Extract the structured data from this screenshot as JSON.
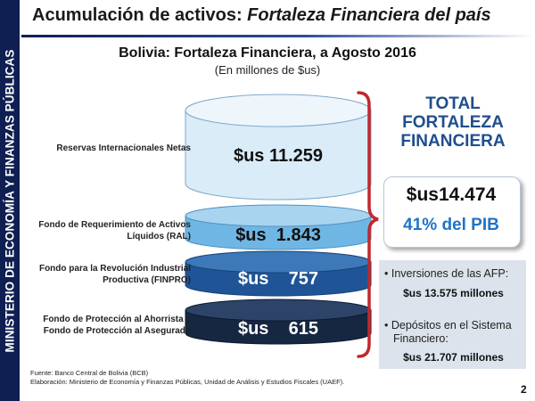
{
  "sidebar": {
    "text": "MINISTERIO DE ECONOMÍA Y FINANZAS PÚBLICAS"
  },
  "header": {
    "title_plain": "Acumulación de activos: ",
    "title_italic": "Fortaleza Financiera del país"
  },
  "chart": {
    "title": "Bolivia: Fortaleza Financiera, a Agosto 2016",
    "subtitle": "(En millones de $us)"
  },
  "chart_data": {
    "type": "bar",
    "categories": [
      "Reservas Internacionales Netas",
      "Fondo de Requerimiento de Activos Líquidos (RAL)",
      "Fondo para la Revolución Industrial Productiva (FINPRO)",
      "Fondo de Protección al Ahorrista y Fondo de Protección al Asegurado"
    ],
    "values": [
      11259,
      1843,
      757,
      615
    ],
    "value_labels": [
      "$us 11.259",
      "$us  1.843",
      "$us    757",
      "$us    615"
    ],
    "title": "Bolivia: Fortaleza Financiera, a Agosto 2016",
    "subtitle": "(En millones de $us)"
  },
  "rows": [
    {
      "label_lines": [
        "Reservas Internacionales Netas"
      ],
      "value": "$us 11.259",
      "color_top": "#eef6fc",
      "color_body": "#d9ecf8",
      "text_color": "#111111"
    },
    {
      "label_lines": [
        "Fondo de Requerimiento de Activos",
        "Líquidos (RAL)"
      ],
      "value": "$us  1.843",
      "color_top": "#a9d4ef",
      "color_body": "#6fb6e4",
      "text_color": "#111111"
    },
    {
      "label_lines": [
        "Fondo para la Revolución Industrial",
        "Productiva (FINPRO)"
      ],
      "value": "$us    757",
      "color_top": "#3d78b8",
      "color_body": "#1f5596",
      "text_color": "#ffffff"
    },
    {
      "label_lines": [
        "Fondo de Protección al Ahorrista y",
        "Fondo de Protección al Asegurado"
      ],
      "value": "$us    615",
      "color_top": "#2d4468",
      "color_body": "#162742",
      "text_color": "#ffffff"
    }
  ],
  "total": {
    "title_lines": [
      "TOTAL",
      "FORTALEZA",
      "FINANCIERA"
    ],
    "value": "$us14.474",
    "pib": "41% del PIB"
  },
  "details": [
    {
      "bullet_lines": [
        "Inversiones de las AFP:"
      ],
      "amount": "$us 13.575 millones"
    },
    {
      "bullet_lines": [
        "Depósitos en el Sistema",
        "Financiero:"
      ],
      "amount": "$us 21.707 millones"
    }
  ],
  "footer": {
    "source": "Fuente: Banco Central de Bolivia (BCB)",
    "elaboration": "Elaboración: Ministerio de Economía y Finanzas Públicas, Unidad de Análisis y Estudios Fiscales (UAEF)."
  },
  "page_number": "2",
  "colors": {
    "navy": "#0f1f52",
    "accent_blue": "#1f4e8c",
    "pib_blue": "#1f73c8",
    "brace_red": "#c0282d"
  }
}
